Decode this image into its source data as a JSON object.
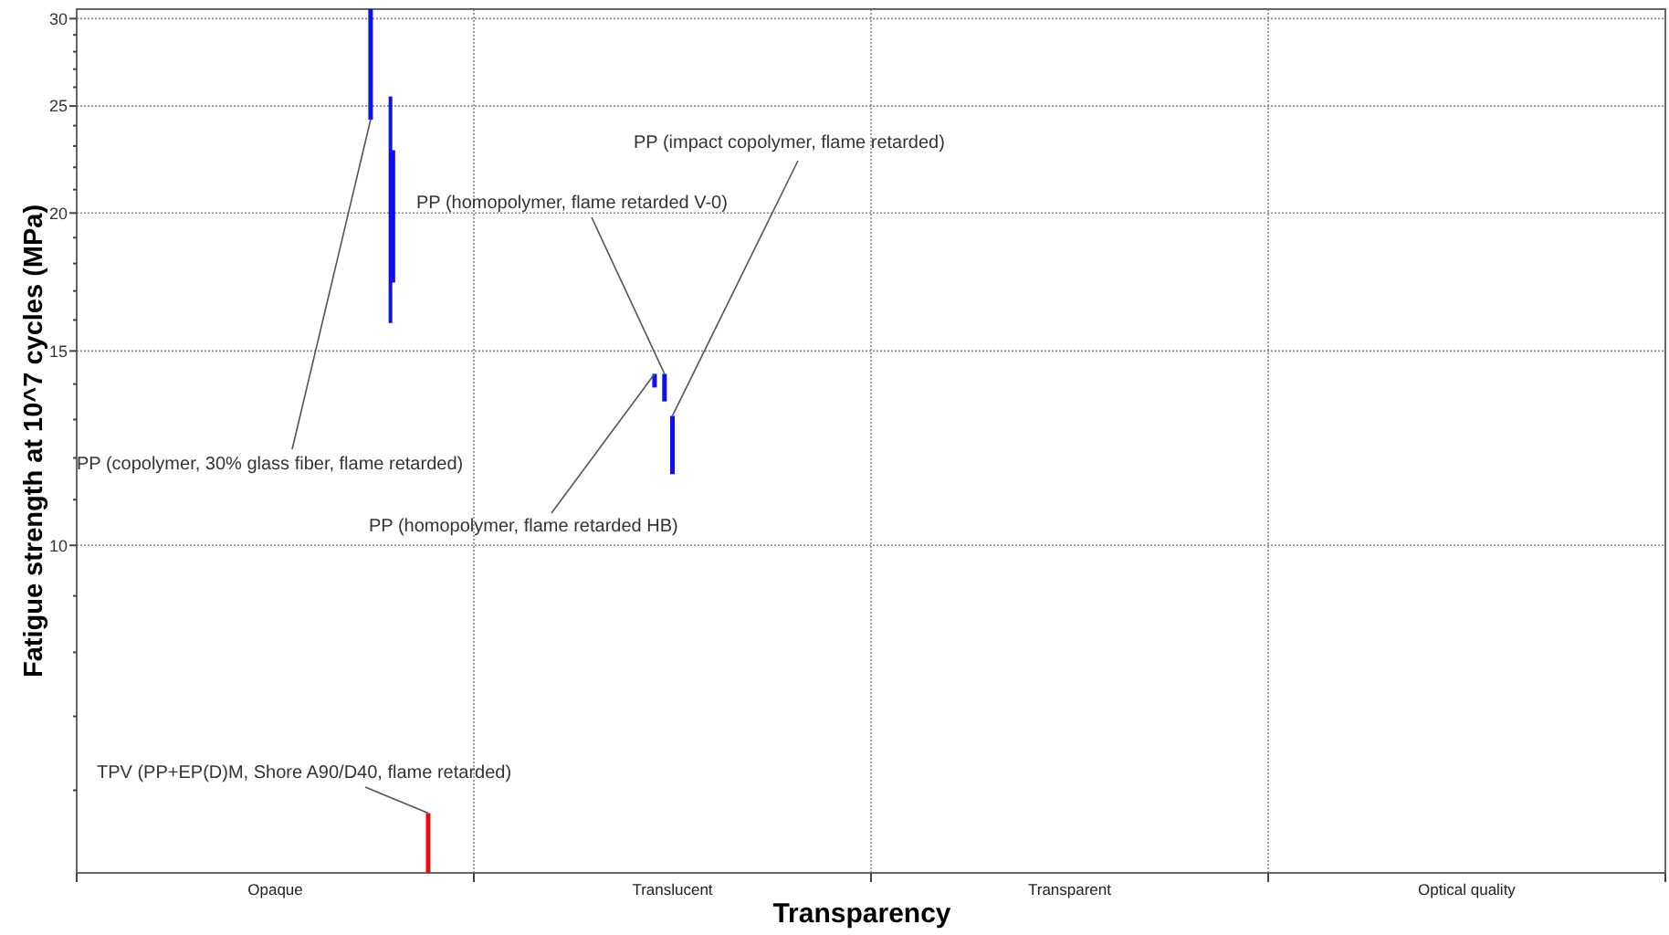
{
  "chart_data": {
    "type": "bar",
    "xlabel": "Transparency",
    "ylabel": "Fatigue strength at 10^7 cycles (MPa)",
    "categories": [
      "Opaque",
      "Translucent",
      "Transparent",
      "Optical quality"
    ],
    "log": true,
    "ylim": [
      5.05,
      30.6
    ],
    "yticks": [
      {
        "value": 6,
        "label": null
      },
      {
        "value": 7,
        "label": null
      },
      {
        "value": 8,
        "label": null
      },
      {
        "value": 9,
        "label": null
      },
      10,
      {
        "value": 11,
        "label": null
      },
      {
        "value": 12,
        "label": null
      },
      {
        "value": 13,
        "label": null
      },
      {
        "value": 14,
        "label": null
      },
      15,
      {
        "value": 16,
        "label": null
      },
      {
        "value": 17,
        "label": null
      },
      {
        "value": 18,
        "label": null
      },
      {
        "value": 19,
        "label": null
      },
      20,
      {
        "value": 21,
        "label": null
      },
      {
        "value": 22,
        "label": null
      },
      {
        "value": 23,
        "label": null
      },
      {
        "value": 24,
        "label": null
      },
      25,
      {
        "value": 26,
        "label": null
      },
      {
        "value": 27,
        "label": null
      },
      {
        "value": 28,
        "label": null
      },
      {
        "value": 29,
        "label": null
      },
      30
    ],
    "grid": true,
    "series": [
      {
        "name": "PP (copolymer, 30% glass fiber, flame retarded)",
        "color": "#1010ee",
        "values": [
          6.3,
          null,
          null,
          null
        ],
        "base": [
          24.3,
          null,
          null,
          null
        ]
      },
      {
        "color": "#1010ee",
        "values": [
          9.6,
          null,
          null,
          null
        ],
        "base": [
          15.9,
          null,
          null,
          null
        ]
      },
      {
        "color": "#1010ee",
        "values": [
          5.5,
          null,
          null,
          null
        ],
        "base": [
          17.3,
          null,
          null,
          null
        ]
      },
      {
        "name": "PP (homopolymer, flame retarded HB)",
        "color": "#1010ee",
        "values": [
          null,
          0.4,
          null,
          null
        ],
        "base": [
          null,
          13.9,
          null,
          null
        ]
      },
      {
        "name": "PP (homopolymer, flame retarded V-0)",
        "color": "#1010ee",
        "values": [
          null,
          0.8,
          null,
          null
        ],
        "base": [
          null,
          13.5,
          null,
          null
        ]
      },
      {
        "name": "PP (impact copolymer, flame retarded)",
        "color": "#1010ee",
        "values": [
          null,
          1.5,
          null,
          null
        ],
        "base": [
          null,
          11.6,
          null,
          null
        ]
      },
      {
        "name": "TPV (PP+EP(D)M, Shore A90/D40, flame retarded)",
        "color": "#e01010",
        "values": [
          0.67,
          null,
          null,
          null
        ],
        "base": [
          5.05,
          null,
          null,
          null
        ]
      }
    ]
  }
}
